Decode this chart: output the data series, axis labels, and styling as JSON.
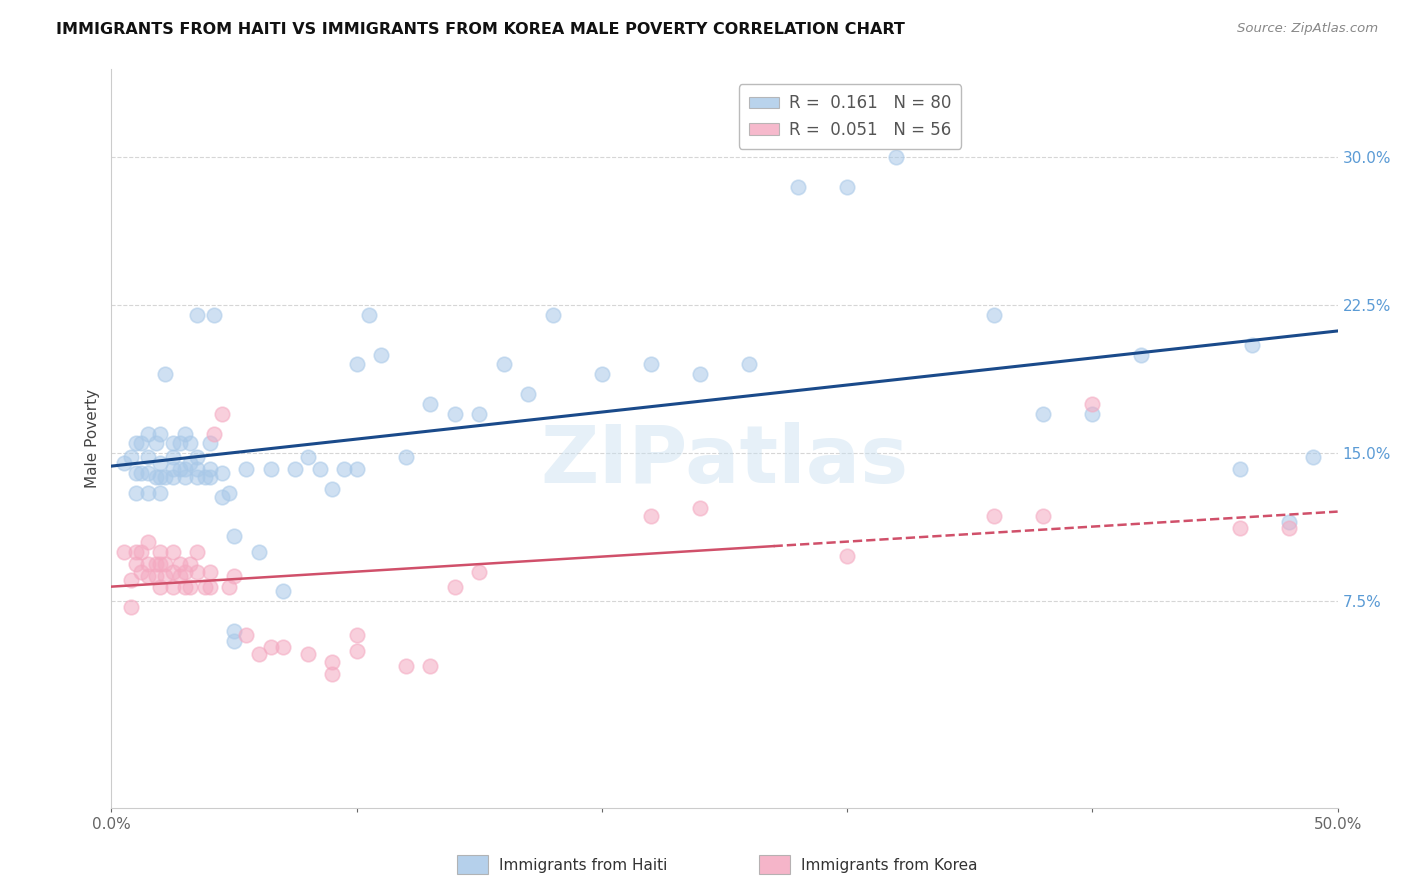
{
  "title": "IMMIGRANTS FROM HAITI VS IMMIGRANTS FROM KOREA MALE POVERTY CORRELATION CHART",
  "source": "Source: ZipAtlas.com",
  "ylabel": "Male Poverty",
  "ytick_labels": [
    "7.5%",
    "15.0%",
    "22.5%",
    "30.0%"
  ],
  "ytick_values": [
    0.075,
    0.15,
    0.225,
    0.3
  ],
  "xlim": [
    0.0,
    0.5
  ],
  "ylim": [
    -0.03,
    0.345
  ],
  "legend_haiti_R": "0.161",
  "legend_haiti_N": "80",
  "legend_korea_R": "0.051",
  "legend_korea_N": "56",
  "haiti_color": "#a8c8e8",
  "korea_color": "#f4a8c0",
  "haiti_line_color": "#1a4a8a",
  "korea_line_color": "#d0506a",
  "haiti_points_x": [
    0.005,
    0.008,
    0.01,
    0.01,
    0.01,
    0.012,
    0.012,
    0.015,
    0.015,
    0.015,
    0.015,
    0.018,
    0.018,
    0.02,
    0.02,
    0.02,
    0.02,
    0.022,
    0.022,
    0.025,
    0.025,
    0.025,
    0.025,
    0.028,
    0.028,
    0.03,
    0.03,
    0.03,
    0.032,
    0.032,
    0.035,
    0.035,
    0.035,
    0.035,
    0.038,
    0.04,
    0.04,
    0.04,
    0.042,
    0.045,
    0.045,
    0.048,
    0.05,
    0.05,
    0.05,
    0.055,
    0.06,
    0.065,
    0.07,
    0.075,
    0.08,
    0.085,
    0.09,
    0.095,
    0.1,
    0.1,
    0.105,
    0.11,
    0.12,
    0.13,
    0.14,
    0.15,
    0.16,
    0.17,
    0.18,
    0.2,
    0.22,
    0.24,
    0.26,
    0.28,
    0.3,
    0.32,
    0.36,
    0.38,
    0.4,
    0.42,
    0.46,
    0.465,
    0.48,
    0.49
  ],
  "haiti_points_y": [
    0.145,
    0.148,
    0.13,
    0.14,
    0.155,
    0.14,
    0.155,
    0.13,
    0.14,
    0.148,
    0.16,
    0.138,
    0.155,
    0.13,
    0.138,
    0.145,
    0.16,
    0.138,
    0.19,
    0.138,
    0.142,
    0.148,
    0.155,
    0.142,
    0.155,
    0.138,
    0.142,
    0.16,
    0.145,
    0.155,
    0.138,
    0.142,
    0.148,
    0.22,
    0.138,
    0.138,
    0.142,
    0.155,
    0.22,
    0.128,
    0.14,
    0.13,
    0.055,
    0.06,
    0.108,
    0.142,
    0.1,
    0.142,
    0.08,
    0.142,
    0.148,
    0.142,
    0.132,
    0.142,
    0.142,
    0.195,
    0.22,
    0.2,
    0.148,
    0.175,
    0.17,
    0.17,
    0.195,
    0.18,
    0.22,
    0.19,
    0.195,
    0.19,
    0.195,
    0.285,
    0.285,
    0.3,
    0.22,
    0.17,
    0.17,
    0.2,
    0.142,
    0.205,
    0.115,
    0.148
  ],
  "korea_points_x": [
    0.005,
    0.008,
    0.008,
    0.01,
    0.01,
    0.012,
    0.012,
    0.015,
    0.015,
    0.015,
    0.018,
    0.018,
    0.02,
    0.02,
    0.02,
    0.022,
    0.022,
    0.025,
    0.025,
    0.025,
    0.028,
    0.028,
    0.03,
    0.03,
    0.032,
    0.032,
    0.035,
    0.035,
    0.038,
    0.04,
    0.04,
    0.042,
    0.045,
    0.048,
    0.05,
    0.055,
    0.06,
    0.065,
    0.07,
    0.08,
    0.09,
    0.09,
    0.1,
    0.1,
    0.12,
    0.13,
    0.14,
    0.15,
    0.22,
    0.24,
    0.3,
    0.36,
    0.38,
    0.4,
    0.46,
    0.48
  ],
  "korea_points_y": [
    0.1,
    0.072,
    0.086,
    0.094,
    0.1,
    0.09,
    0.1,
    0.088,
    0.094,
    0.105,
    0.088,
    0.094,
    0.082,
    0.094,
    0.1,
    0.088,
    0.094,
    0.082,
    0.09,
    0.1,
    0.088,
    0.094,
    0.082,
    0.09,
    0.094,
    0.082,
    0.09,
    0.1,
    0.082,
    0.082,
    0.09,
    0.16,
    0.17,
    0.082,
    0.088,
    0.058,
    0.048,
    0.052,
    0.052,
    0.048,
    0.038,
    0.044,
    0.05,
    0.058,
    0.042,
    0.042,
    0.082,
    0.09,
    0.118,
    0.122,
    0.098,
    0.118,
    0.118,
    0.175,
    0.112,
    0.112
  ],
  "background_color": "#ffffff",
  "grid_color": "#cccccc",
  "watermark": "ZIPatlas"
}
